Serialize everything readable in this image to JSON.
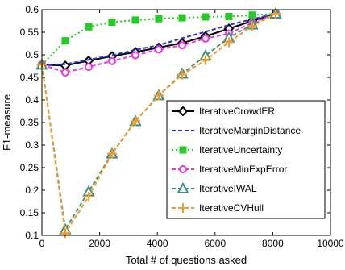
{
  "chart_data": {
    "type": "line",
    "title": "",
    "xlabel": "Total # of questions asked",
    "ylabel": "F1-measure",
    "xlim": [
      0,
      10000
    ],
    "ylim": [
      0.1,
      0.6
    ],
    "xticks": [
      0,
      2000,
      4000,
      6000,
      8000,
      10000
    ],
    "xtick_labels": [
      "0",
      "2000",
      "4000",
      "6000",
      "8000",
      "10000"
    ],
    "yticks": [
      0.1,
      0.15,
      0.2,
      0.25,
      0.3,
      0.35,
      0.4,
      0.45,
      0.5,
      0.55,
      0.6
    ],
    "ytick_labels": [
      "0.1",
      "0.15",
      "0.2",
      "0.25",
      "0.3",
      "0.35",
      "0.4",
      "0.45",
      "0.5",
      "0.55",
      "0.6"
    ],
    "grid": false,
    "legend_position": "center-right",
    "series": [
      {
        "name": "IterativeCrowdER",
        "color": "#000000",
        "line_style": "solid",
        "marker": "diamond",
        "x": [
          0,
          810,
          1620,
          2430,
          3240,
          4050,
          4860,
          5670,
          6480,
          7290,
          8100
        ],
        "y": [
          0.478,
          0.476,
          0.487,
          0.497,
          0.506,
          0.516,
          0.526,
          0.541,
          0.558,
          0.575,
          0.591
        ]
      },
      {
        "name": "IterativeMarginDistance",
        "color": "#1f2fd6",
        "line_style": "dashed",
        "marker": "none",
        "x": [
          0,
          810,
          1620,
          2430,
          3240,
          4050,
          4860,
          5670,
          6480,
          7290,
          8100
        ],
        "y": [
          0.478,
          0.479,
          0.489,
          0.499,
          0.511,
          0.521,
          0.537,
          0.551,
          0.566,
          0.579,
          0.591
        ]
      },
      {
        "name": "IterativeUncertainty",
        "color": "#22cc22",
        "line_style": "dotted",
        "marker": "square",
        "x": [
          0,
          810,
          1620,
          2430,
          3240,
          4050,
          4860,
          5670,
          6480,
          7290,
          8100
        ],
        "y": [
          0.478,
          0.531,
          0.562,
          0.572,
          0.577,
          0.58,
          0.582,
          0.584,
          0.585,
          0.588,
          0.591
        ]
      },
      {
        "name": "IterativeMinExpError",
        "color": "#ee33ee",
        "line_style": "dashed",
        "marker": "circle",
        "x": [
          0,
          810,
          1620,
          2430,
          3240,
          4050,
          4860,
          5670,
          6480,
          7290,
          8100
        ],
        "y": [
          0.478,
          0.461,
          0.473,
          0.486,
          0.499,
          0.512,
          0.521,
          0.536,
          0.547,
          0.571,
          0.591
        ]
      },
      {
        "name": "IterativeIWAL",
        "color": "#3f8f83",
        "line_style": "dashed",
        "marker": "triangle",
        "x": [
          0,
          810,
          1620,
          2430,
          3240,
          4050,
          4860,
          5670,
          6480,
          7290,
          8100
        ],
        "y": [
          0.478,
          0.113,
          0.197,
          0.281,
          0.353,
          0.41,
          0.458,
          0.498,
          0.538,
          0.567,
          0.591
        ]
      },
      {
        "name": "IterativeCVHull",
        "color": "#f39a26",
        "line_style": "dashed",
        "marker": "plus",
        "x": [
          0,
          810,
          1620,
          2430,
          3240,
          4050,
          4860,
          5670,
          6480,
          7290,
          8100
        ],
        "y": [
          0.478,
          0.105,
          0.186,
          0.281,
          0.353,
          0.41,
          0.456,
          0.488,
          0.528,
          0.564,
          0.591
        ]
      }
    ]
  }
}
